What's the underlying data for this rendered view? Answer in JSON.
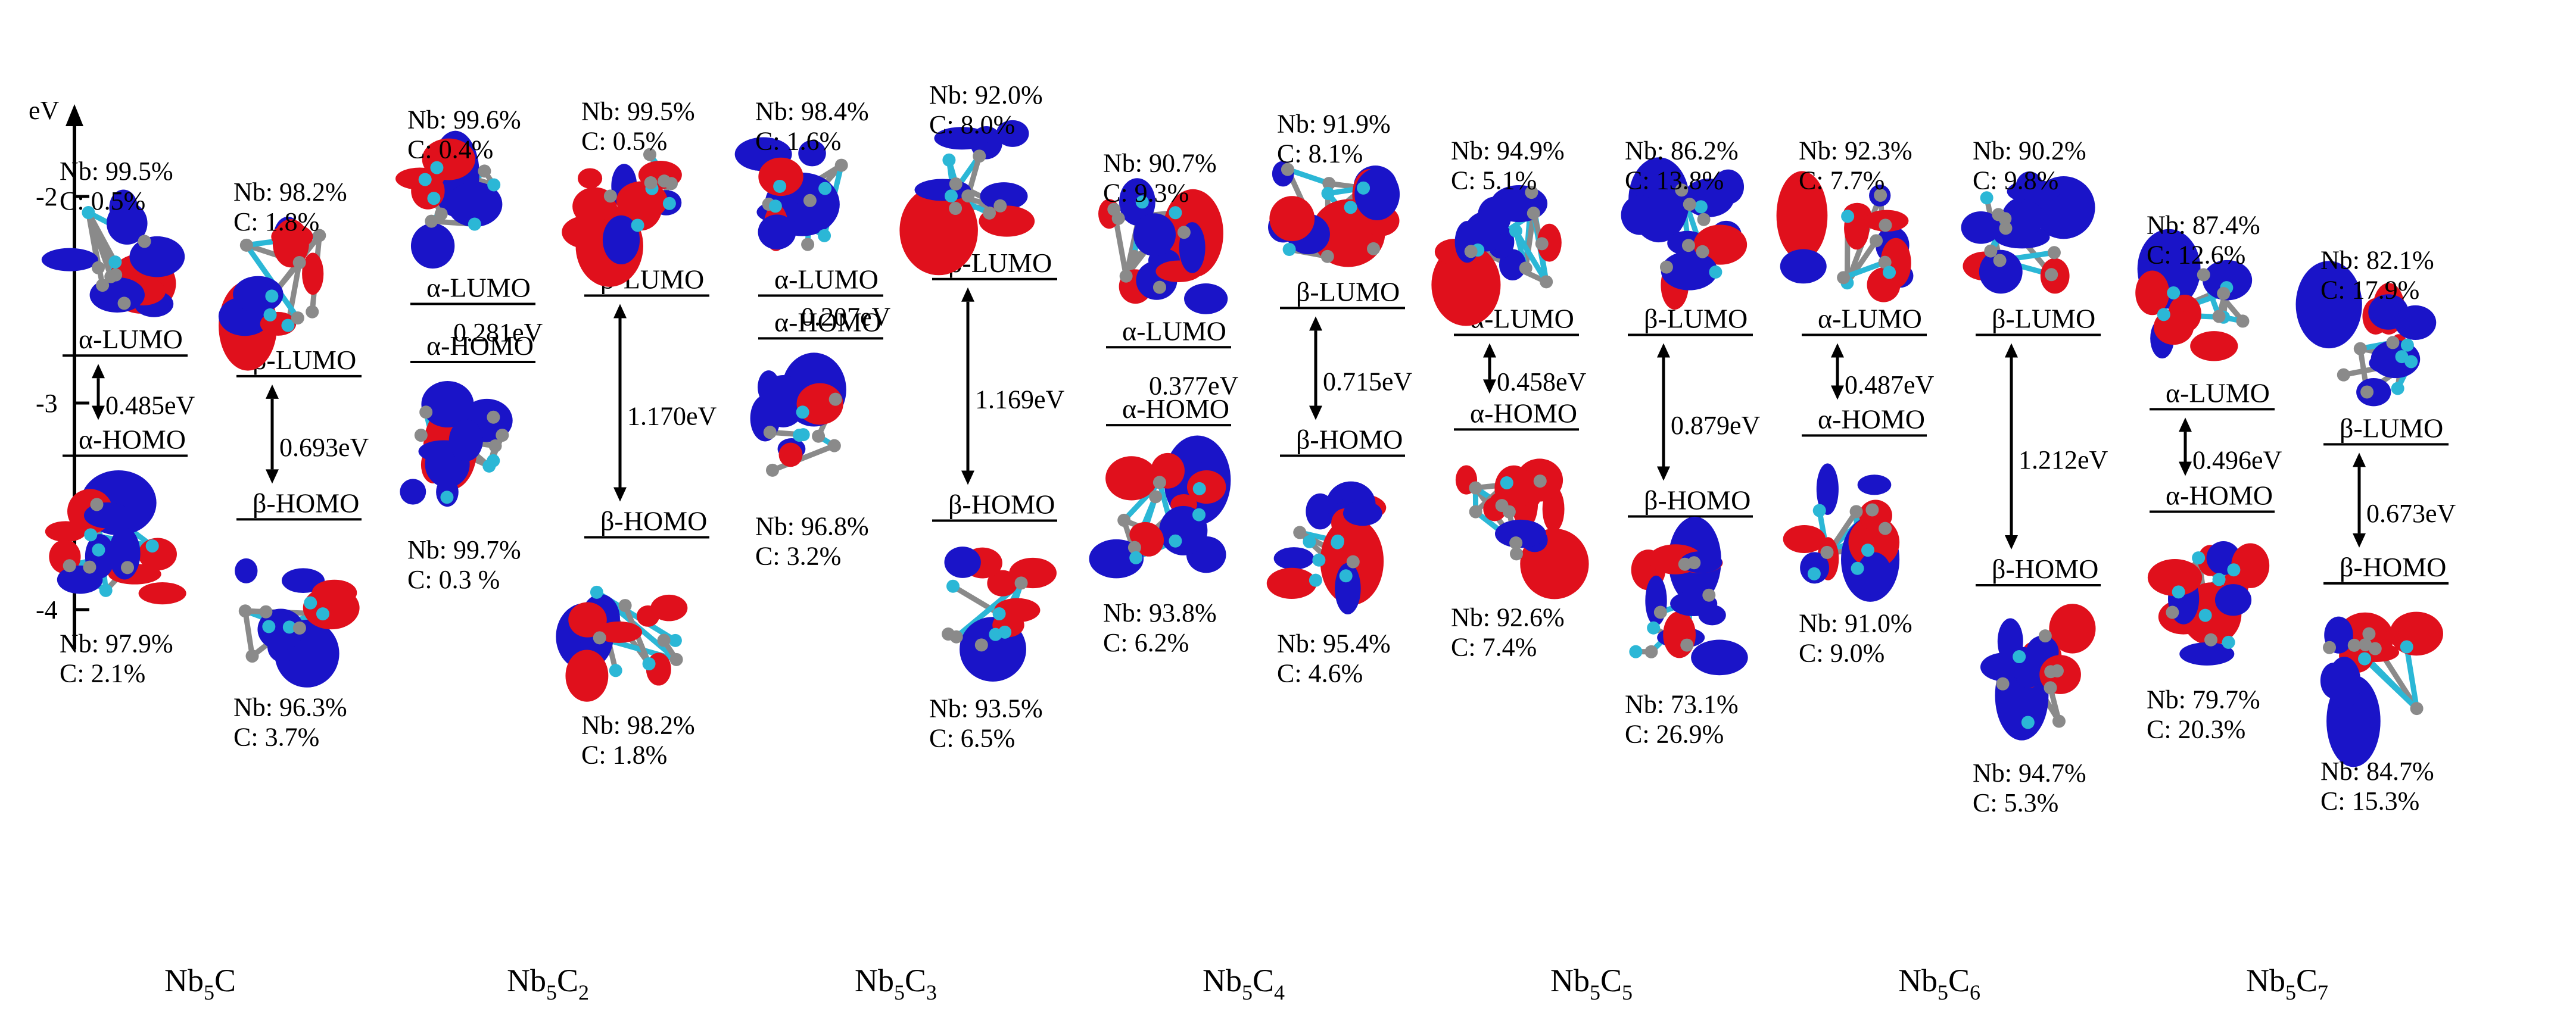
{
  "axis": {
    "unit": "eV",
    "range": [
      -4.1,
      -1.45
    ],
    "ticks": [
      {
        "value": -2,
        "label": "-2"
      },
      {
        "value": -3,
        "label": "-3"
      },
      {
        "value": -4,
        "label": "-4"
      }
    ]
  },
  "colors": {
    "positive_lobe": "#e0101c",
    "negative_lobe": "#1a14c8",
    "nb_atom": "#8a8a8a",
    "c_atom": "#2bb7d6"
  },
  "systems": [
    {
      "base": "Nb",
      "n1": "5",
      "el2": "C",
      "n2": ""
    },
    {
      "base": "Nb",
      "n1": "5",
      "el2": "C",
      "n2": "2"
    },
    {
      "base": "Nb",
      "n1": "5",
      "el2": "C",
      "n2": "3"
    },
    {
      "base": "Nb",
      "n1": "5",
      "el2": "C",
      "n2": "4"
    },
    {
      "base": "Nb",
      "n1": "5",
      "el2": "C",
      "n2": "5"
    },
    {
      "base": "Nb",
      "n1": "5",
      "el2": "C",
      "n2": "6"
    },
    {
      "base": "Nb",
      "n1": "5",
      "el2": "C",
      "n2": "7"
    }
  ],
  "columns": [
    {
      "system": "Nb5C",
      "spin": "alpha",
      "lumo_label": "α-LUMO",
      "homo_label": "α-HOMO",
      "lumo_ev": -2.77,
      "homo_ev": -3.255,
      "gap_label": "0.485eV",
      "lumo_nb": "Nb: 99.5%",
      "lumo_c": "C: 0.5%",
      "homo_nb": "Nb: 97.9%",
      "homo_c": "C: 2.1%"
    },
    {
      "system": "Nb5C",
      "spin": "beta",
      "lumo_label": "β-LUMO",
      "homo_label": "β-HOMO",
      "lumo_ev": -2.87,
      "homo_ev": -3.563,
      "gap_label": "0.693eV",
      "lumo_nb": "Nb: 98.2%",
      "lumo_c": "C: 1.8%",
      "homo_nb": "Nb: 96.3%",
      "homo_c": "C: 3.7%"
    },
    {
      "system": "Nb5C2",
      "spin": "alpha",
      "lumo_label": "α-LUMO",
      "homo_label": "α-HOMO",
      "lumo_ev": -2.52,
      "homo_ev": -2.801,
      "gap_label": "0.281eV",
      "lumo_nb": "Nb: 99.6%",
      "lumo_c": "C: 0.4%",
      "homo_nb": "Nb: 99.7%",
      "homo_c": "C: 0.3 %"
    },
    {
      "system": "Nb5C2",
      "spin": "beta",
      "lumo_label": "β-LUMO",
      "homo_label": "β-HOMO",
      "lumo_ev": -2.48,
      "homo_ev": -3.65,
      "gap_label": "1.170eV",
      "lumo_nb": "Nb: 99.5%",
      "lumo_c": "C: 0.5%",
      "homo_nb": "Nb: 98.2%",
      "homo_c": "C: 1.8%"
    },
    {
      "system": "Nb5C3",
      "spin": "alpha",
      "lumo_label": "α-LUMO",
      "homo_label": "α-HOMO",
      "lumo_ev": -2.48,
      "homo_ev": -2.687,
      "gap_label": "0.207eV",
      "lumo_nb": "Nb: 98.4%",
      "lumo_c": "C: 1.6%",
      "homo_nb": "Nb: 96.8%",
      "homo_c": "C: 3.2%"
    },
    {
      "system": "Nb5C3",
      "spin": "beta",
      "lumo_label": "β-LUMO",
      "homo_label": "β-HOMO",
      "lumo_ev": -2.4,
      "homo_ev": -3.569,
      "gap_label": "1.169eV",
      "lumo_nb": "Nb: 92.0%",
      "lumo_c": "C: 8.0%",
      "homo_nb": "Nb: 93.5%",
      "homo_c": "C: 6.5%"
    },
    {
      "system": "Nb5C4",
      "spin": "alpha",
      "lumo_label": "α-LUMO",
      "homo_label": "α-HOMO",
      "lumo_ev": -2.73,
      "homo_ev": -3.107,
      "gap_label": "0.377eV",
      "lumo_nb": "Nb: 90.7%",
      "lumo_c": "C: 9.3%",
      "homo_nb": "Nb: 93.8%",
      "homo_c": "C: 6.2%"
    },
    {
      "system": "Nb5C4",
      "spin": "beta",
      "lumo_label": "β-LUMO",
      "homo_label": "β-HOMO",
      "lumo_ev": -2.54,
      "homo_ev": -3.255,
      "gap_label": "0.715eV",
      "lumo_nb": "Nb: 91.9%",
      "lumo_c": "C: 8.1%",
      "homo_nb": "Nb: 95.4%",
      "homo_c": "C: 4.6%"
    },
    {
      "system": "Nb5C5",
      "spin": "alpha",
      "lumo_label": "α-LUMO",
      "homo_label": "α-HOMO",
      "lumo_ev": -2.67,
      "homo_ev": -3.128,
      "gap_label": "0.458eV",
      "lumo_nb": "Nb: 94.9%",
      "lumo_c": "C: 5.1%",
      "homo_nb": "Nb: 92.6%",
      "homo_c": "C: 7.4%"
    },
    {
      "system": "Nb5C5",
      "spin": "beta",
      "lumo_label": "β-LUMO",
      "homo_label": "β-HOMO",
      "lumo_ev": -2.67,
      "homo_ev": -3.549,
      "gap_label": "0.879eV",
      "lumo_nb": "Nb: 86.2%",
      "lumo_c": "C: 13.8%",
      "homo_nb": "Nb: 73.1%",
      "homo_c": "C: 26.9%"
    },
    {
      "system": "Nb5C6",
      "spin": "alpha",
      "lumo_label": "α-LUMO",
      "homo_label": "α-HOMO",
      "lumo_ev": -2.67,
      "homo_ev": -3.157,
      "gap_label": "0.487eV",
      "lumo_nb": "Nb: 92.3%",
      "lumo_c": "C: 7.7%",
      "homo_nb": "Nb: 91.0%",
      "homo_c": "C: 9.0%"
    },
    {
      "system": "Nb5C6",
      "spin": "beta",
      "lumo_label": "β-LUMO",
      "homo_label": "β-HOMO",
      "lumo_ev": -2.67,
      "homo_ev": -3.882,
      "gap_label": "1.212eV",
      "lumo_nb": "Nb: 90.2%",
      "lumo_c": "C: 9.8%",
      "homo_nb": "Nb: 94.7%",
      "homo_c": "C: 5.3%"
    },
    {
      "system": "Nb5C7",
      "spin": "alpha",
      "lumo_label": "α-LUMO",
      "homo_label": "α-HOMO",
      "lumo_ev": -3.03,
      "homo_ev": -3.526,
      "gap_label": "0.496eV",
      "lumo_nb": "Nb: 87.4%",
      "lumo_c": "C: 12.6%",
      "homo_nb": "Nb: 79.7%",
      "homo_c": "C: 20.3%"
    },
    {
      "system": "Nb5C7",
      "spin": "beta",
      "lumo_label": "β-LUMO",
      "homo_label": "β-HOMO",
      "lumo_ev": -3.2,
      "homo_ev": -3.873,
      "gap_label": "0.673eV",
      "lumo_nb": "Nb: 82.1%",
      "lumo_c": "C: 17.9%",
      "homo_nb": "Nb: 84.7%",
      "homo_c": "C: 15.3%"
    }
  ]
}
